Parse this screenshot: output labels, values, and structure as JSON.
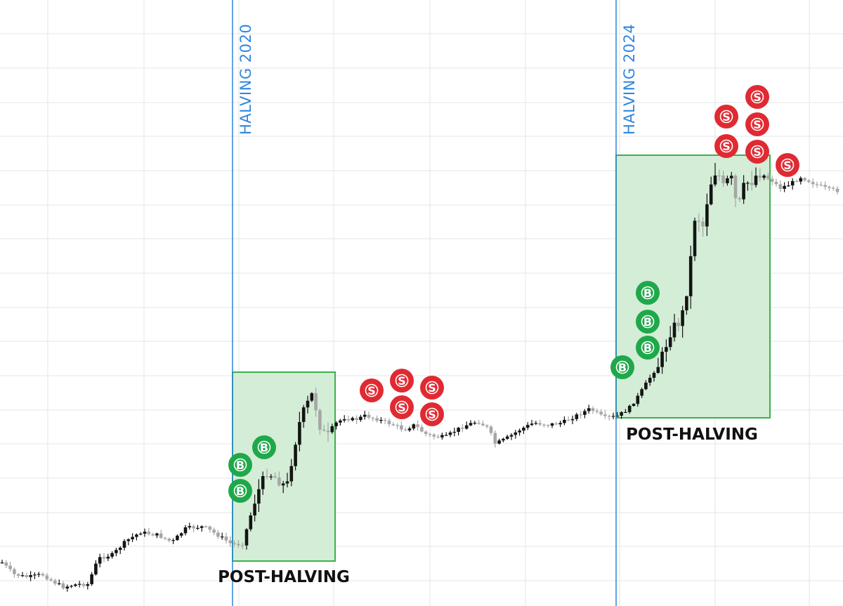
{
  "chart_data": {
    "type": "candlestick",
    "title": "",
    "xlabel": "",
    "ylabel": "",
    "grid": true,
    "halvings": [
      {
        "label": "HALVING 2020"
      },
      {
        "label": "HALVING 2024"
      }
    ],
    "zones": [
      {
        "label": "POST-HALVING"
      },
      {
        "label": "POST-HALVING"
      }
    ],
    "signals": {
      "buy_label": "B",
      "sell_label": "S"
    }
  },
  "colors": {
    "grid": "#e6e6e6",
    "halving_line": "#2f86e0",
    "zone_fill": "#d3edd6",
    "zone_border": "#3db04d",
    "candle_dark": "#141414",
    "candle_light": "#a6a6a6",
    "buy_marker": "#1fa84a",
    "sell_marker": "#e02a32",
    "zone_text": "#111111"
  }
}
